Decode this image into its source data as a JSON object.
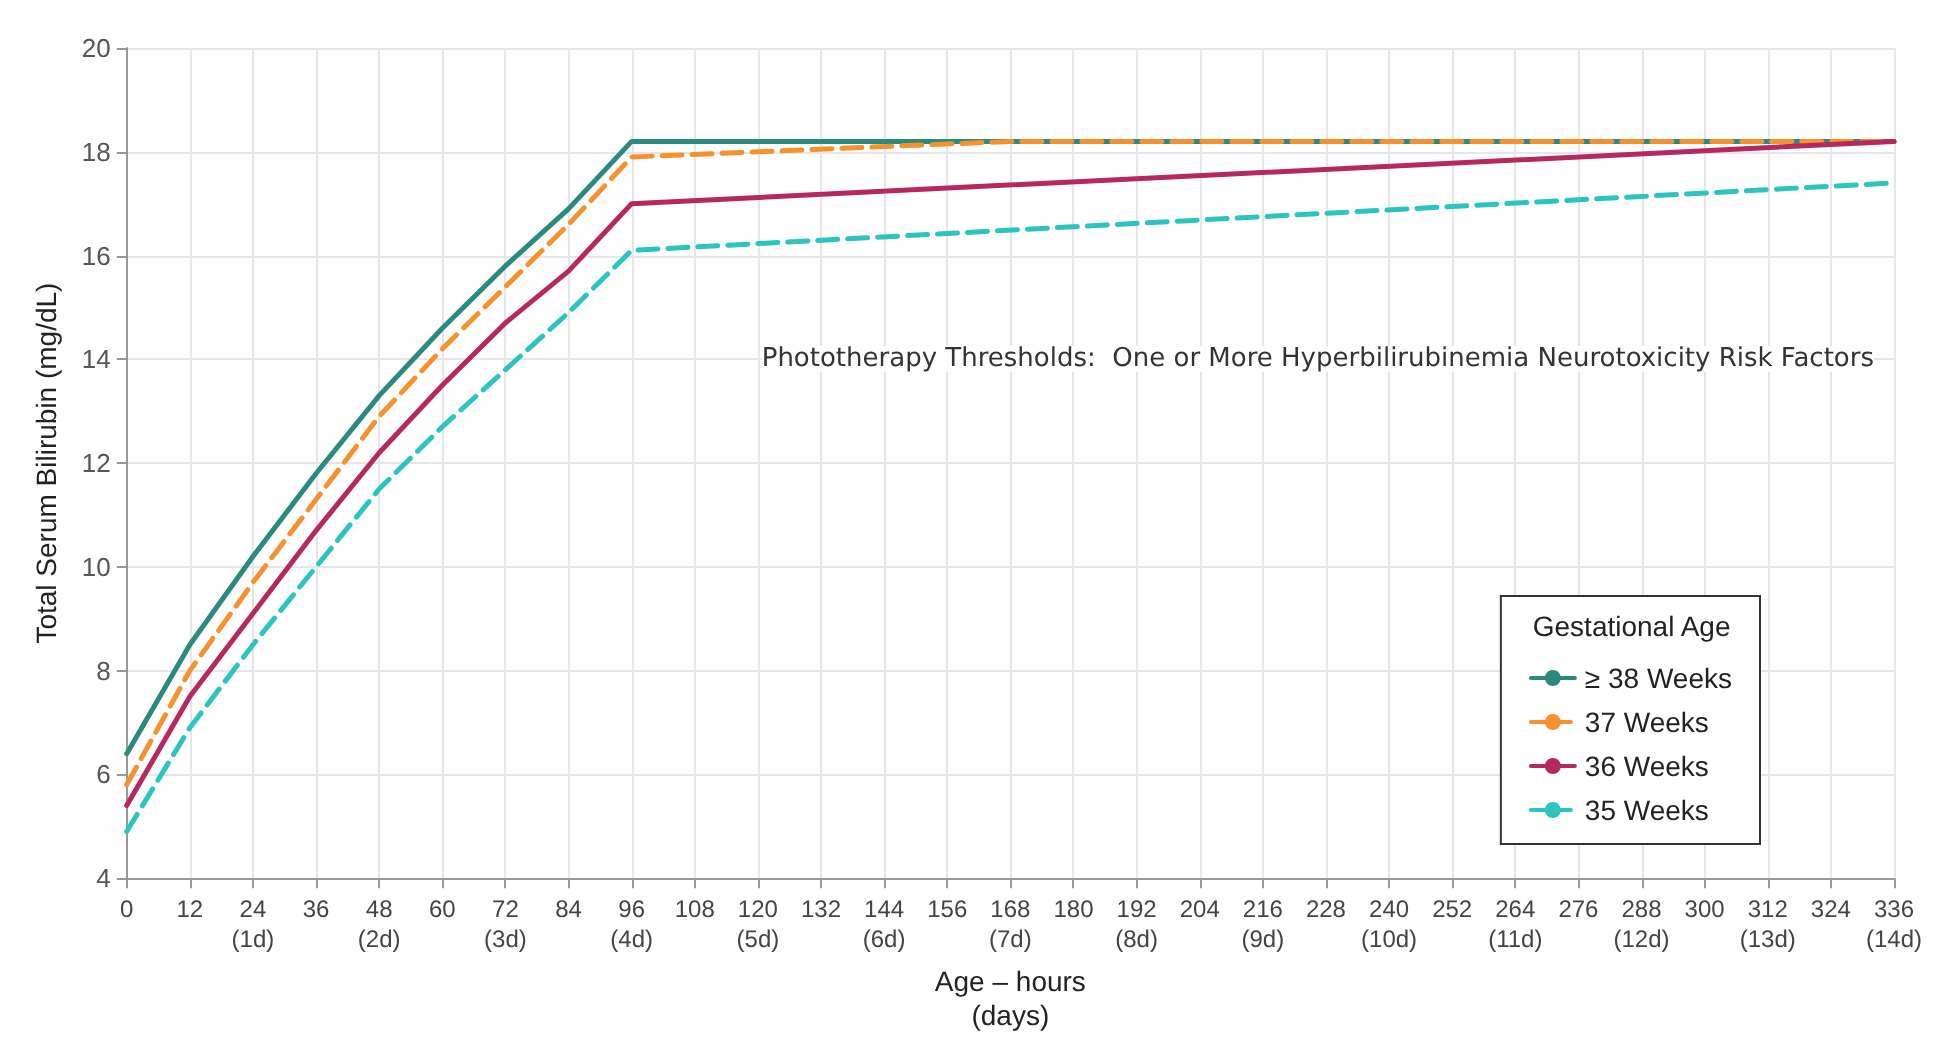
{
  "chart_data": {
    "type": "line",
    "xlabel": "Age – hours\n(days)",
    "ylabel": "Total Serum Bilirubin (mg/dL)",
    "legend_title": "Gestational Age",
    "annotations": [
      "Phototherapy Thresholds:  One or More Hyperbilirubinemia Neurotoxicity Risk Factors"
    ],
    "xlim": [
      0,
      336
    ],
    "ylim": [
      4,
      20
    ],
    "yticks": [
      4,
      6,
      8,
      10,
      12,
      14,
      16,
      18,
      20
    ],
    "xticks": [
      0,
      12,
      {
        "value": 24,
        "label": "24\n(1d)"
      },
      36,
      {
        "value": 48,
        "label": "48\n(2d)"
      },
      60,
      {
        "value": 72,
        "label": "72\n(3d)"
      },
      84,
      {
        "value": 96,
        "label": "96\n(4d)"
      },
      108,
      {
        "value": 120,
        "label": "120\n(5d)"
      },
      132,
      {
        "value": 144,
        "label": "144\n(6d)"
      },
      156,
      {
        "value": 168,
        "label": "168\n(7d)"
      },
      180,
      {
        "value": 192,
        "label": "192\n(8d)"
      },
      204,
      {
        "value": 216,
        "label": "216\n(9d)"
      },
      228,
      {
        "value": 240,
        "label": "240\n(10d)"
      },
      252,
      {
        "value": 264,
        "label": "264\n(11d)"
      },
      276,
      {
        "value": 288,
        "label": "288\n(12d)"
      },
      300,
      {
        "value": 312,
        "label": "312\n(13d)"
      },
      324,
      {
        "value": 336,
        "label": "336\n(14d)"
      }
    ],
    "grid": true,
    "legend": "bottom right",
    "marker": "none",
    "series": [
      {
        "name": "≥ 38 Weeks",
        "color": "#2a8a80",
        "line_style": "solid",
        "x": [
          0,
          12,
          24,
          36,
          48,
          60,
          72,
          84,
          96,
          336
        ],
        "values": [
          6.4,
          8.5,
          10.2,
          11.8,
          13.3,
          14.6,
          15.8,
          16.9,
          18.2,
          18.2
        ]
      },
      {
        "name": "37 Weeks",
        "color": "#f5922f",
        "line_style": "dashed",
        "x": [
          0,
          12,
          24,
          36,
          48,
          60,
          72,
          84,
          96,
          168,
          336
        ],
        "values": [
          5.8,
          8.0,
          9.7,
          11.3,
          12.9,
          14.2,
          15.4,
          16.6,
          17.9,
          18.2,
          18.2
        ]
      },
      {
        "name": "36 Weeks",
        "color": "#b5295e",
        "line_style": "solid",
        "x": [
          0,
          12,
          24,
          36,
          48,
          60,
          72,
          84,
          96,
          336
        ],
        "values": [
          5.4,
          7.5,
          9.1,
          10.7,
          12.2,
          13.5,
          14.7,
          15.7,
          17.0,
          18.2
        ]
      },
      {
        "name": "35 Weeks",
        "color": "#2cc4c0",
        "line_style": "dashed",
        "x": [
          0,
          12,
          24,
          36,
          48,
          60,
          72,
          84,
          96,
          336
        ],
        "values": [
          4.9,
          6.9,
          8.5,
          10.0,
          11.5,
          12.7,
          13.8,
          14.9,
          16.1,
          17.4
        ]
      }
    ]
  }
}
